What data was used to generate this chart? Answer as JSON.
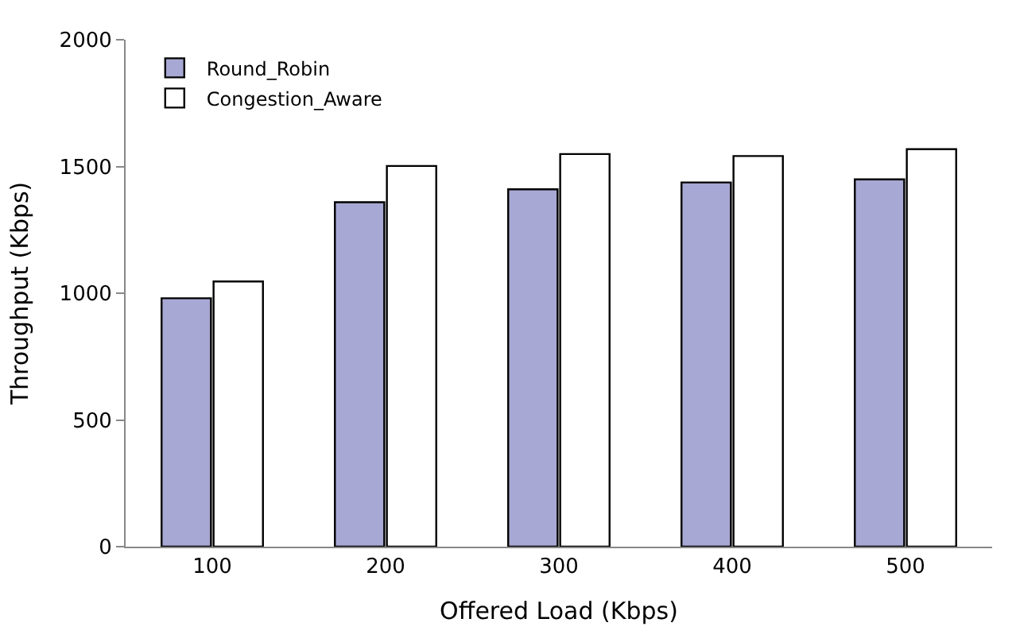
{
  "chart_data": {
    "type": "bar",
    "xlabel": "Offered Load (Kbps)",
    "ylabel": "Throughput (Kbps)",
    "categories": [
      "100",
      "200",
      "300",
      "400",
      "500"
    ],
    "series": [
      {
        "name": "Round_Robin",
        "color": "#a8a8d4",
        "values": [
          980,
          1359,
          1410,
          1437,
          1449
        ]
      },
      {
        "name": "Congestion_Aware",
        "color": "#ffffff",
        "values": [
          1046,
          1502,
          1549,
          1541,
          1568
        ]
      }
    ],
    "ylim": [
      0,
      2000
    ],
    "yticks": [
      0,
      500,
      1000,
      1500,
      2000
    ],
    "grid": false,
    "legend": "top left"
  }
}
